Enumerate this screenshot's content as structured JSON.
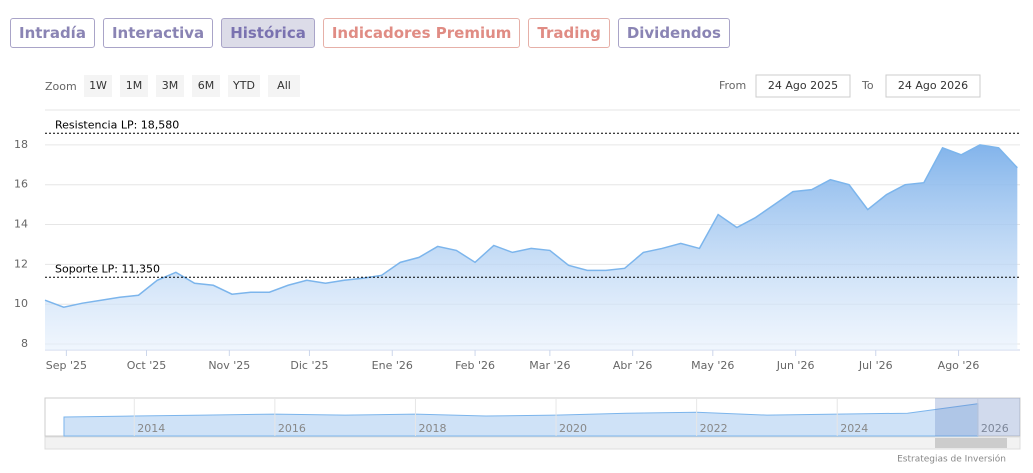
{
  "ui": {
    "tabs": [
      "Intradía",
      "Interactiva",
      "Histórica",
      "Indicadores Premium",
      "Trading",
      "Dividendos"
    ],
    "zoom_label": "Zoom",
    "zoom_buttons": [
      "1W",
      "1M",
      "3M",
      "6M",
      "YTD",
      "All"
    ],
    "from_label": "From",
    "from": "24 Ago 2025",
    "to_label": "To",
    "to": "24 Ago 2026",
    "credit": "Estrategias de Inversión"
  },
  "chart_data": {
    "type": "area",
    "series": [
      {
        "color": "#7cb5ec",
        "x": [
          0,
          7,
          14,
          21,
          28,
          35,
          42,
          49,
          56,
          63,
          70,
          77,
          84,
          91,
          98,
          105,
          112,
          119,
          126,
          133,
          140,
          147,
          154,
          161,
          168,
          175,
          182,
          189,
          196,
          203,
          210,
          217,
          224,
          231,
          238,
          245,
          252,
          259,
          266,
          273,
          280,
          287,
          294,
          301,
          308,
          315,
          322,
          329,
          336,
          343,
          350,
          357,
          364
        ],
        "values": [
          10.2,
          9.85,
          10.05,
          10.2,
          10.35,
          10.45,
          11.2,
          11.6,
          11.05,
          10.95,
          10.5,
          10.6,
          10.6,
          10.95,
          11.2,
          11.05,
          11.2,
          11.3,
          11.45,
          12.1,
          12.35,
          12.9,
          12.7,
          12.1,
          12.95,
          12.6,
          12.8,
          12.7,
          11.95,
          11.7,
          11.7,
          11.8,
          12.6,
          12.8,
          13.05,
          12.8,
          14.5,
          13.85,
          14.35,
          15.0,
          15.65,
          15.75,
          16.25,
          16.0,
          14.75,
          15.5,
          16.0,
          16.1,
          17.85,
          17.5,
          18.0,
          17.85,
          16.85
        ]
      }
    ],
    "xlim": [
      0,
      365
    ],
    "xticks": [
      {
        "value": 8,
        "label": "Sep '25"
      },
      {
        "value": 38,
        "label": "Oct '25"
      },
      {
        "value": 69,
        "label": "Nov '25"
      },
      {
        "value": 99,
        "label": "Dic '25"
      },
      {
        "value": 130,
        "label": "Ene '26"
      },
      {
        "value": 161,
        "label": "Feb '26"
      },
      {
        "value": 189,
        "label": "Mar '26"
      },
      {
        "value": 220,
        "label": "Abr '26"
      },
      {
        "value": 250,
        "label": "May '26"
      },
      {
        "value": 281,
        "label": "Jun '26"
      },
      {
        "value": 311,
        "label": "Jul '26"
      },
      {
        "value": 342,
        "label": "Ago '26"
      }
    ],
    "ylim": [
      7.7,
      19.75
    ],
    "yticks": [
      8,
      10,
      12,
      14,
      16,
      18
    ],
    "grid": true,
    "plot_lines": [
      {
        "label": "Resistencia LP: 18,580",
        "value": 18.58
      },
      {
        "label": "Soporte LP: 11,350",
        "value": 11.35
      }
    ],
    "navigator": {
      "x": [
        2013,
        2014,
        2015,
        2016,
        2017,
        2018,
        2019,
        2020,
        2021,
        2022,
        2023,
        2024,
        2025,
        2026
      ],
      "values": [
        10,
        10.5,
        11,
        11.5,
        11,
        11.5,
        10.5,
        11,
        12,
        12.5,
        11,
        11.5,
        12,
        17
      ],
      "xlim": [
        2012.73,
        2026.6
      ],
      "ylim": [
        0,
        20
      ],
      "xticks": [
        2014,
        2016,
        2018,
        2020,
        2022,
        2024,
        2026
      ]
    }
  }
}
